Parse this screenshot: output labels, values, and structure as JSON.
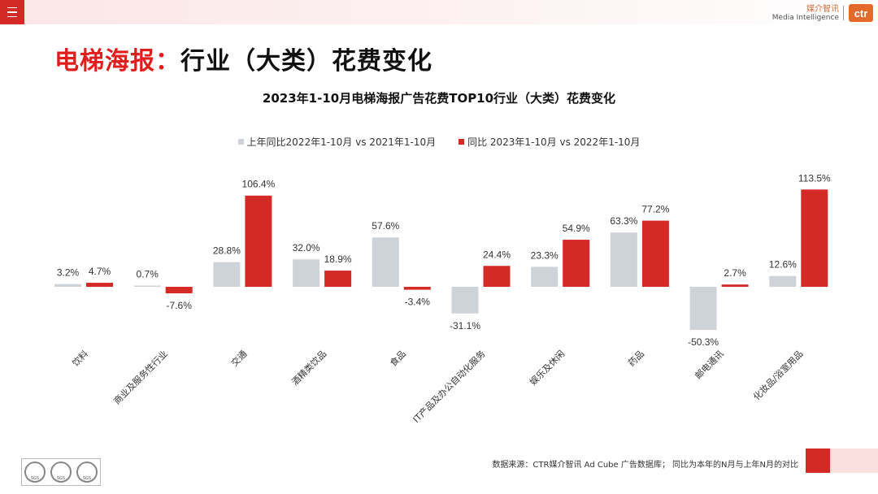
{
  "header": {
    "brand_cn": "媒介智讯",
    "brand_en": "Media Intelligence",
    "brand_logo": "ctr"
  },
  "title": {
    "prefix": "电梯海报：",
    "main": "行业（大类）花费变化"
  },
  "colors": {
    "prev": "#cdd3d8",
    "curr": "#d42a25",
    "accent": "#e01e1e"
  },
  "chart_data": {
    "type": "bar",
    "title": "2023年1-10月电梯海报广告花费TOP10行业（大类）花费变化",
    "categories": [
      "饮料",
      "商业及服务性行业",
      "交通",
      "酒精类饮品",
      "食品",
      "IT产品及办公自动化服务",
      "娱乐及休闲",
      "药品",
      "邮电通讯",
      "化妆品/浴室用品"
    ],
    "series": [
      {
        "name": "上年同比2022年1-10月 vs 2021年1-10月",
        "values": [
          3.2,
          0.7,
          28.8,
          32.0,
          57.6,
          -31.1,
          23.3,
          63.3,
          -50.3,
          12.6
        ]
      },
      {
        "name": "同比 2023年1-10月 vs 2022年1-10月",
        "values": [
          4.7,
          -7.6,
          106.4,
          18.9,
          -3.4,
          24.4,
          54.9,
          77.2,
          2.7,
          113.5
        ]
      }
    ],
    "labels_prev": [
      "3.2%",
      "0.7%",
      "28.8%",
      "32.0%",
      "57.6%",
      "-31.1%",
      "23.3%",
      "63.3%",
      "-50.3%",
      "12.6%"
    ],
    "labels_curr": [
      "4.7%",
      "-7.6%",
      "106.4%",
      "18.9%",
      "-3.4%",
      "24.4%",
      "54.9%",
      "77.2%",
      "2.7%",
      "113.5%"
    ],
    "xlabel": "",
    "ylabel": "",
    "ylim": [
      -60,
      120
    ],
    "grid": false,
    "legend": "top"
  },
  "footer": {
    "source": "数据来源：CTR媒介智讯 Ad Cube 广告数据库； 同比为本年的N月与上年N月的对比",
    "cert": "SGS"
  }
}
